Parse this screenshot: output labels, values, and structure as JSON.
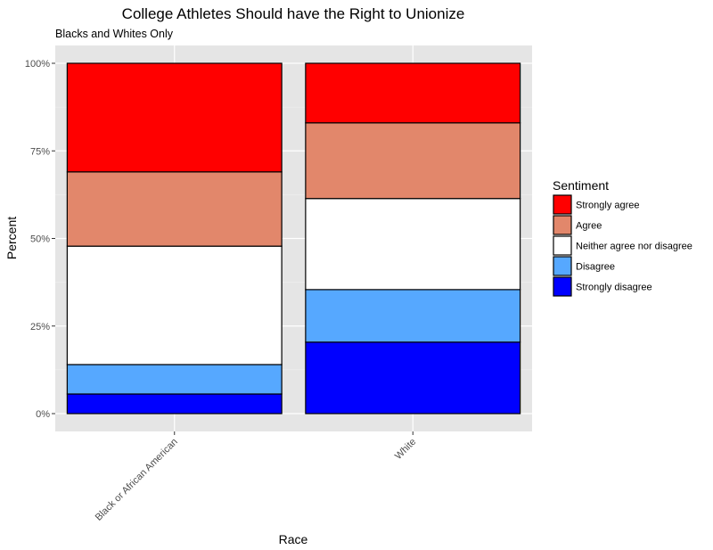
{
  "chart_data": {
    "type": "bar",
    "stacked": true,
    "normalized": true,
    "title": "College Athletes Should have the Right to Unionize",
    "subtitle": "Blacks and Whites Only",
    "xlabel": "Race",
    "ylabel": "Percent",
    "ylim": [
      0,
      1
    ],
    "y_ticks": [
      0,
      0.25,
      0.5,
      0.75,
      1.0
    ],
    "y_tick_labels": [
      "0%",
      "25%",
      "50%",
      "75%",
      "100%"
    ],
    "categories": [
      "Black or African American",
      "White"
    ],
    "series": [
      {
        "name": "Strongly disagree",
        "color": "#0000ff",
        "values": [
          0.056,
          0.204
        ]
      },
      {
        "name": "Disagree",
        "color": "#56a8ff",
        "values": [
          0.084,
          0.15
        ]
      },
      {
        "name": "Neither agree nor disagree",
        "color": "#ffffff",
        "values": [
          0.338,
          0.26
        ]
      },
      {
        "name": "Agree",
        "color": "#e2876b",
        "values": [
          0.212,
          0.216
        ]
      },
      {
        "name": "Strongly agree",
        "color": "#ff0000",
        "values": [
          0.31,
          0.17
        ]
      }
    ],
    "legend": {
      "title": "Sentiment",
      "position": "right",
      "order": [
        "Strongly agree",
        "Agree",
        "Neither agree nor disagree",
        "Disagree",
        "Strongly disagree"
      ]
    },
    "grid": true,
    "panel_color": "#e5e5e5"
  }
}
